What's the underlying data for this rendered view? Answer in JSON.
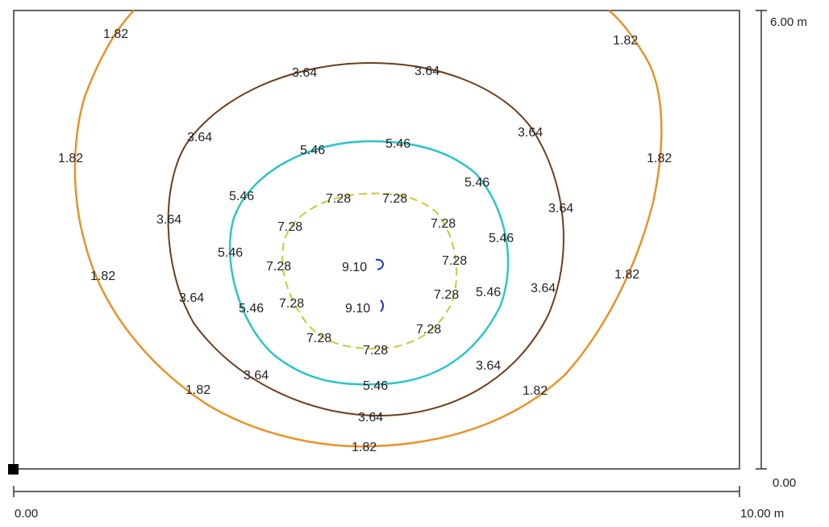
{
  "scale": {
    "x_start": "0.00",
    "x_end": "10.00 m",
    "y_start": "0.00",
    "y_end": "6.00 m"
  },
  "contours": [
    {
      "value": "1.82",
      "color": "#e8922a"
    },
    {
      "value": "3.64",
      "color": "#6b3e1e"
    },
    {
      "value": "5.46",
      "color": "#2ec4c8"
    },
    {
      "value": "7.28",
      "color": "#c9c93a"
    },
    {
      "value": "9.10",
      "color": "#2233bb"
    }
  ]
}
